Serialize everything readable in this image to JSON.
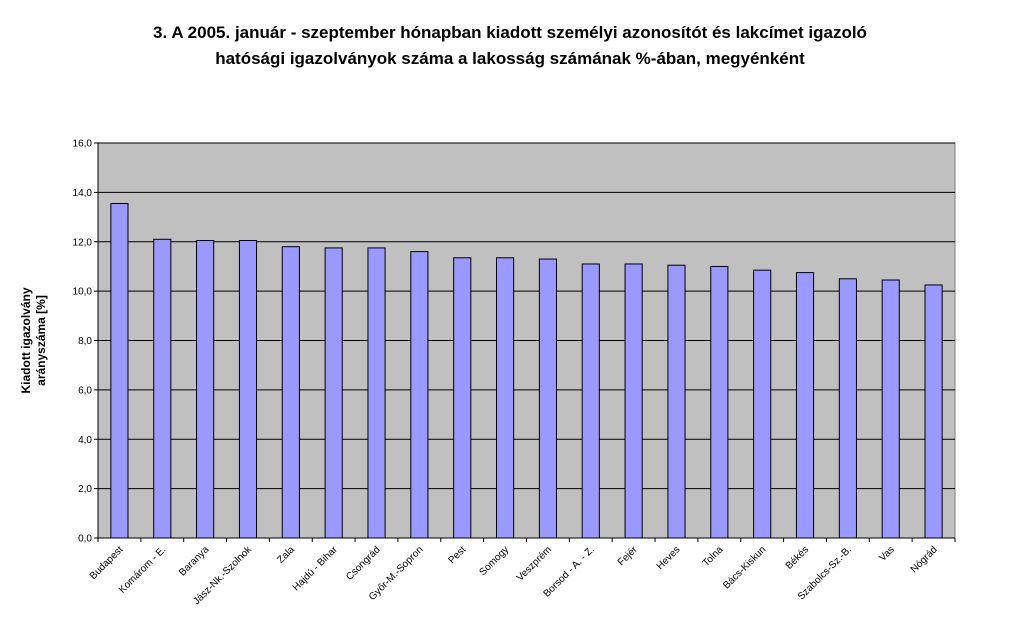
{
  "chart_data": {
    "type": "bar",
    "title_lines": [
      "3. A 2005. január - szeptember hónapban  kiadott személyi azonosítót és lakcímet igazoló",
      "hatósági igazolványok száma a lakosság  számának %-ában, megyénként"
    ],
    "ylabel_lines": [
      "Kiadott igazolvány",
      "arányszáma [%]"
    ],
    "xlabel": "",
    "categories": [
      "Budapest",
      "Komárom - E.",
      "Baranya",
      "Jász-Nk.-Szolnok",
      "Zala",
      "Hajdú - Bihar",
      "Csongrád",
      "Győr-M.-Sopron",
      "Pest",
      "Somogy",
      "Veszprém",
      "Borsod - A. - Z.",
      "Fejér",
      "Heves",
      "Tolna",
      "Bács-Kiskun",
      "Békés",
      "Szabolcs-Sz.-B.",
      "Vas",
      "Nógrád"
    ],
    "values": [
      13.55,
      12.1,
      12.05,
      12.05,
      11.8,
      11.75,
      11.75,
      11.6,
      11.35,
      11.35,
      11.3,
      11.1,
      11.1,
      11.05,
      11.0,
      10.85,
      10.75,
      10.5,
      10.45,
      10.25
    ],
    "ylim": [
      0,
      16
    ],
    "yticks": [
      "0,0",
      "2,0",
      "4,0",
      "6,0",
      "8,0",
      "10,0",
      "12,0",
      "14,0",
      "16,0"
    ],
    "grid": true,
    "legend": "none",
    "colors": {
      "bar_fill": "#9999ff",
      "bar_stroke": "#000000",
      "plot_background": "#c0c0c0",
      "gridline": "#000000"
    }
  }
}
